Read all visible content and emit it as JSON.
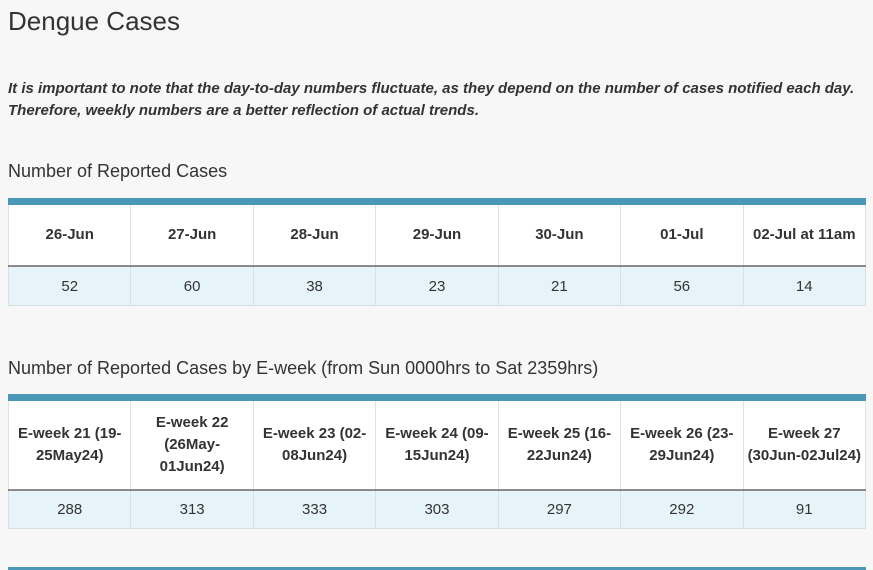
{
  "page": {
    "title": "Dengue Cases",
    "note_line1": "It is important to note that the day-to-day numbers fluctuate, as they depend on the number of cases notified each day.",
    "note_line2": "Therefore, weekly numbers are a better reflection of actual trends."
  },
  "daily": {
    "title": "Number of Reported Cases",
    "headers": [
      "26-Jun",
      "27-Jun",
      "28-Jun",
      "29-Jun",
      "30-Jun",
      "01-Jul",
      "02-Jul at 11am"
    ],
    "values": [
      "52",
      "60",
      "38",
      "23",
      "21",
      "56",
      "14"
    ]
  },
  "weekly": {
    "title": "Number of Reported Cases by E-week (from Sun 0000hrs to Sat 2359hrs)",
    "headers": [
      "E-week 21 (19-25May24)",
      "E-week 22 (26May-01Jun24)",
      "E-week 23 (02-08Jun24)",
      "E-week 24 (09-15Jun24)",
      "E-week 25 (16-22Jun24)",
      "E-week 26 (23-29Jun24)",
      "E-week 27 (30Jun-02Jul24)"
    ],
    "values": [
      "288",
      "313",
      "333",
      "303",
      "297",
      "292",
      "91"
    ]
  },
  "colors": {
    "accent": "#4a97b8",
    "value_row_bg": "#e6f4fa",
    "page_bg": "#f7f7f7",
    "text": "#333333"
  }
}
